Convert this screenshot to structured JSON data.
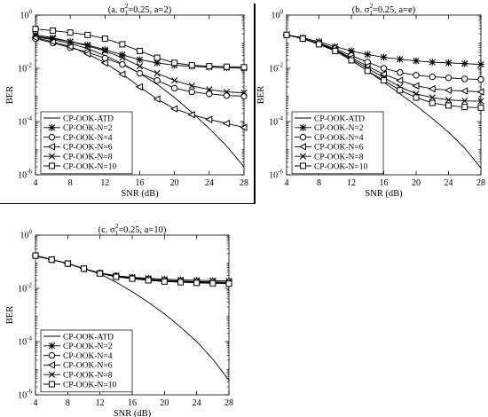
{
  "chart_data": [
    {
      "type": "line",
      "title_parts": [
        "(a. σ",
        "1",
        "2",
        "=0.25, a=2)"
      ],
      "xlabel": "SNR (dB)",
      "ylabel": "BER",
      "x": [
        4,
        6,
        8,
        10,
        12,
        14,
        16,
        18,
        20,
        22,
        24,
        26,
        28
      ],
      "xticks": [
        4,
        8,
        12,
        16,
        20,
        24,
        28
      ],
      "xlim": [
        4,
        28
      ],
      "ylim": [
        1e-06,
        1
      ],
      "yscale": "log",
      "ytick_exponents": [
        0,
        -2,
        -4,
        -6
      ],
      "legend_placement": "bottom-left",
      "series": [
        {
          "name": "CP-OOK-ATD",
          "marker": "none",
          "values": [
            0.15,
            0.12,
            0.085,
            0.055,
            0.03,
            0.015,
            0.0065,
            0.0025,
            0.0008,
            0.00022,
            5.5e-05,
            1.2e-05,
            2e-06
          ]
        },
        {
          "name": "CP-OOK-N=2",
          "marker": "asterisk",
          "values": [
            0.16,
            0.13,
            0.1,
            0.075,
            0.05,
            0.032,
            0.021,
            0.016,
            0.013,
            0.012,
            0.011,
            0.0105,
            0.01
          ]
        },
        {
          "name": "CP-OOK-N=4",
          "marker": "circle",
          "values": [
            0.13,
            0.09,
            0.06,
            0.04,
            0.024,
            0.014,
            0.0065,
            0.0035,
            0.0018,
            0.0013,
            0.0011,
            0.00095,
            0.0009
          ]
        },
        {
          "name": "CP-OOK-N=6",
          "marker": "triangle-left",
          "values": [
            0.14,
            0.1,
            0.065,
            0.035,
            0.016,
            0.006,
            0.002,
            0.0007,
            0.0003,
            0.00018,
            0.00012,
            8.5e-05,
            6e-05
          ]
        },
        {
          "name": "CP-OOK-N=8",
          "marker": "x",
          "values": [
            0.18,
            0.14,
            0.1,
            0.07,
            0.045,
            0.025,
            0.012,
            0.0065,
            0.0035,
            0.0022,
            0.0016,
            0.0013,
            0.0012
          ]
        },
        {
          "name": "CP-OOK-N=10",
          "marker": "square",
          "values": [
            0.3,
            0.26,
            0.22,
            0.18,
            0.13,
            0.08,
            0.045,
            0.025,
            0.016,
            0.013,
            0.012,
            0.0115,
            0.011
          ]
        }
      ]
    },
    {
      "type": "line",
      "title_parts": [
        "(b. σ",
        "1",
        "2",
        "=0.25, a=e)"
      ],
      "xlabel": "SNR (dB)",
      "ylabel": "BER",
      "x": [
        4,
        6,
        8,
        10,
        12,
        14,
        16,
        18,
        20,
        22,
        24,
        26,
        28
      ],
      "xticks": [
        4,
        8,
        12,
        16,
        20,
        24,
        28
      ],
      "xlim": [
        4,
        28
      ],
      "ylim": [
        1e-06,
        1
      ],
      "yscale": "log",
      "ytick_exponents": [
        0,
        -2,
        -4,
        -6
      ],
      "legend_placement": "bottom-left",
      "series": [
        {
          "name": "CP-OOK-ATD",
          "marker": "none",
          "values": [
            0.18,
            0.13,
            0.08,
            0.045,
            0.02,
            0.008,
            0.003,
            0.0011,
            0.0004,
            0.00013,
            4e-05,
            1e-05,
            1.8e-06
          ]
        },
        {
          "name": "CP-OOK-N=2",
          "marker": "asterisk",
          "values": [
            0.18,
            0.14,
            0.1,
            0.065,
            0.045,
            0.033,
            0.026,
            0.022,
            0.019,
            0.017,
            0.016,
            0.015,
            0.014
          ]
        },
        {
          "name": "CP-OOK-N=4",
          "marker": "circle",
          "values": [
            0.18,
            0.13,
            0.09,
            0.055,
            0.03,
            0.017,
            0.01,
            0.007,
            0.0055,
            0.0048,
            0.0044,
            0.004,
            0.0038
          ]
        },
        {
          "name": "CP-OOK-N=6",
          "marker": "triangle-left",
          "values": [
            0.18,
            0.13,
            0.085,
            0.05,
            0.025,
            0.012,
            0.006,
            0.0035,
            0.0022,
            0.0017,
            0.0015,
            0.0014,
            0.0013
          ]
        },
        {
          "name": "CP-OOK-N=8",
          "marker": "x",
          "values": [
            0.18,
            0.13,
            0.085,
            0.05,
            0.022,
            0.01,
            0.0045,
            0.002,
            0.0011,
            0.0008,
            0.00065,
            0.0006,
            0.00058
          ]
        },
        {
          "name": "CP-OOK-N=10",
          "marker": "square",
          "values": [
            0.18,
            0.13,
            0.08,
            0.045,
            0.02,
            0.008,
            0.0035,
            0.0015,
            0.0008,
            0.0005,
            0.0004,
            0.00035,
            0.00033
          ]
        }
      ]
    },
    {
      "type": "line",
      "title_parts": [
        "(c. σ",
        "1",
        "2",
        "=0.25, a=10)"
      ],
      "xlabel": "SNR (dB)",
      "ylabel": "BER",
      "x": [
        4,
        6,
        8,
        10,
        12,
        14,
        16,
        18,
        20,
        22,
        24,
        26,
        28
      ],
      "xticks": [
        4,
        8,
        12,
        16,
        20,
        24,
        28
      ],
      "xlim": [
        4,
        28
      ],
      "ylim": [
        1e-06,
        1
      ],
      "yscale": "log",
      "ytick_exponents": [
        0,
        -2,
        -4,
        -6
      ],
      "legend_placement": "bottom-left",
      "series": [
        {
          "name": "CP-OOK-ATD",
          "marker": "none",
          "values": [
            0.16,
            0.12,
            0.085,
            0.055,
            0.035,
            0.017,
            0.0075,
            0.003,
            0.0011,
            0.00035,
            0.0001,
            2.2e-05,
            3.5e-06
          ]
        },
        {
          "name": "CP-OOK-N=2",
          "marker": "asterisk",
          "values": [
            0.17,
            0.12,
            0.085,
            0.055,
            0.038,
            0.03,
            0.026,
            0.024,
            0.022,
            0.021,
            0.02,
            0.0195,
            0.019
          ]
        },
        {
          "name": "CP-OOK-N=4",
          "marker": "circle",
          "values": [
            0.17,
            0.12,
            0.085,
            0.055,
            0.037,
            0.029,
            0.025,
            0.022,
            0.02,
            0.019,
            0.018,
            0.0175,
            0.017
          ]
        },
        {
          "name": "CP-OOK-N=6",
          "marker": "triangle-left",
          "values": [
            0.17,
            0.12,
            0.085,
            0.055,
            0.037,
            0.028,
            0.024,
            0.021,
            0.019,
            0.018,
            0.017,
            0.0165,
            0.016
          ]
        },
        {
          "name": "CP-OOK-N=8",
          "marker": "x",
          "values": [
            0.17,
            0.12,
            0.085,
            0.055,
            0.037,
            0.028,
            0.024,
            0.021,
            0.019,
            0.018,
            0.017,
            0.0165,
            0.016
          ]
        },
        {
          "name": "CP-OOK-N=10",
          "marker": "square",
          "values": [
            0.17,
            0.12,
            0.085,
            0.055,
            0.036,
            0.027,
            0.023,
            0.02,
            0.018,
            0.017,
            0.016,
            0.0155,
            0.015
          ]
        }
      ]
    }
  ]
}
